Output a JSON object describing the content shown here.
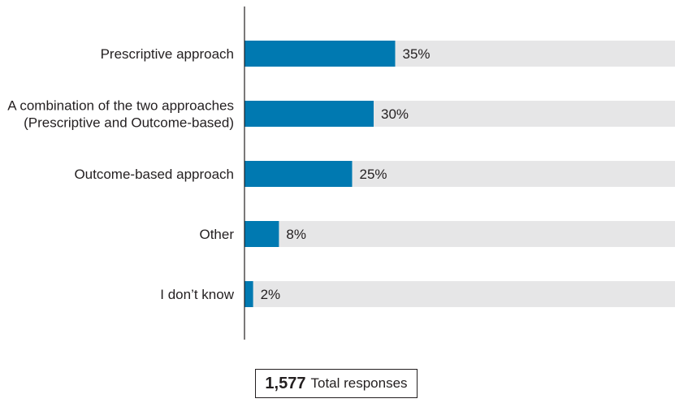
{
  "chart_data": {
    "type": "bar",
    "orientation": "horizontal",
    "categories": [
      [
        "Prescriptive approach"
      ],
      [
        "A combination of the two approaches",
        "(Prescriptive and Outcome-based)"
      ],
      [
        "Outcome-based approach"
      ],
      [
        "Other"
      ],
      [
        "I don’t know"
      ]
    ],
    "values": [
      35,
      30,
      25,
      8,
      2
    ],
    "value_labels": [
      "35%",
      "30%",
      "25%",
      "8%",
      "2%"
    ],
    "xlim": [
      0,
      100
    ],
    "unit": "%",
    "bar_color": "#0079b1",
    "track_color": "#e6e6e7",
    "axis_color": "#231f20",
    "grid": false
  },
  "total": {
    "count": "1,577",
    "label": "Total responses"
  }
}
